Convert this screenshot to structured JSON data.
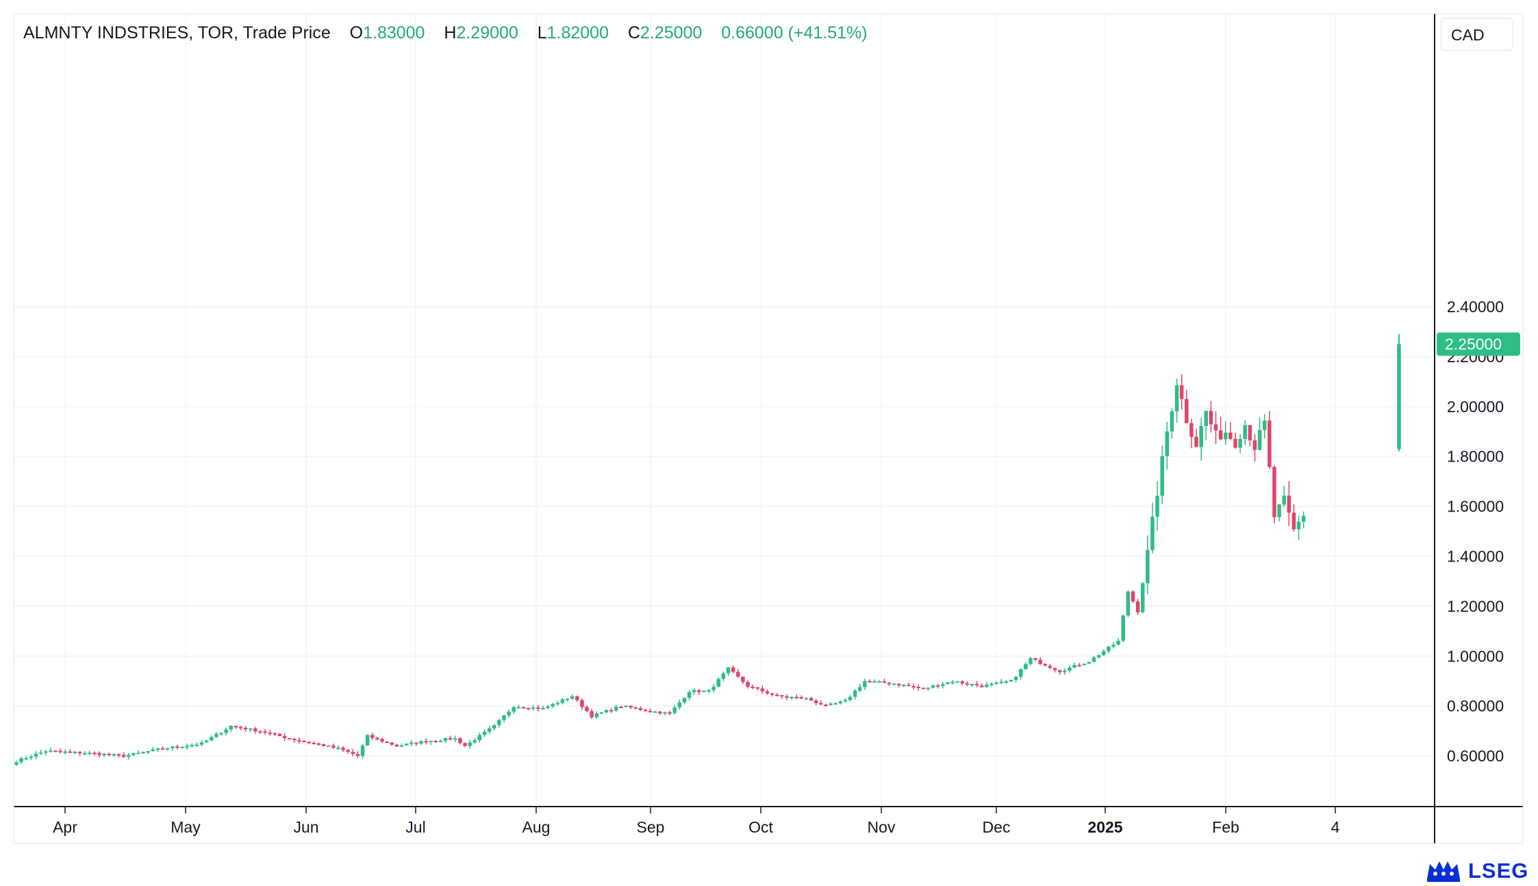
{
  "legend": {
    "instrument": "ALMNTY INDSTRIES, TOR, Trade Price",
    "o_label": "O",
    "o_value": "1.83000",
    "h_label": "H",
    "h_value": "2.29000",
    "l_label": "L",
    "l_value": "1.82000",
    "c_label": "C",
    "c_value": "2.25000",
    "change": "0.66000 (+41.51%)"
  },
  "currency": "CAD",
  "logo": {
    "text": "LSEG",
    "icon": "lseg-lion-crest-icon"
  },
  "colors": {
    "up": "#2ebd85",
    "down": "#e0436b",
    "grid": "#f0f3fa",
    "axis": "#131722",
    "logo": "#0a2fd6"
  },
  "chart_data": {
    "type": "candlestick",
    "ylim": [
      0.4,
      2.6
    ],
    "y_ticks": [
      "0.60000",
      "0.80000",
      "1.00000",
      "1.20000",
      "1.40000",
      "1.60000",
      "1.80000",
      "2.00000",
      "2.20000",
      "2.40000"
    ],
    "x_labels": [
      {
        "label": "Apr",
        "bold": false
      },
      {
        "label": "May",
        "bold": false
      },
      {
        "label": "Jun",
        "bold": false
      },
      {
        "label": "Jul",
        "bold": false
      },
      {
        "label": "Aug",
        "bold": false
      },
      {
        "label": "Sep",
        "bold": false
      },
      {
        "label": "Oct",
        "bold": false
      },
      {
        "label": "Nov",
        "bold": false
      },
      {
        "label": "Dec",
        "bold": false
      },
      {
        "label": "2025",
        "bold": true
      },
      {
        "label": "Feb",
        "bold": false
      },
      {
        "label": "4",
        "bold": false
      }
    ],
    "last_price": "2.25000",
    "last_value": 2.25,
    "waypoints": [
      [
        0,
        0.58
      ],
      [
        6,
        0.62
      ],
      [
        16,
        0.61
      ],
      [
        22,
        0.6
      ],
      [
        30,
        0.63
      ],
      [
        34,
        0.64
      ],
      [
        38,
        0.65
      ],
      [
        44,
        0.72
      ],
      [
        50,
        0.7
      ],
      [
        56,
        0.67
      ],
      [
        66,
        0.63
      ],
      [
        70,
        0.6
      ],
      [
        72,
        0.68
      ],
      [
        78,
        0.64
      ],
      [
        84,
        0.66
      ],
      [
        90,
        0.67
      ],
      [
        92,
        0.64
      ],
      [
        98,
        0.72
      ],
      [
        102,
        0.8
      ],
      [
        108,
        0.79
      ],
      [
        114,
        0.84
      ],
      [
        118,
        0.76
      ],
      [
        124,
        0.8
      ],
      [
        130,
        0.78
      ],
      [
        134,
        0.77
      ],
      [
        138,
        0.86
      ],
      [
        142,
        0.86
      ],
      [
        146,
        0.95
      ],
      [
        150,
        0.88
      ],
      [
        156,
        0.84
      ],
      [
        162,
        0.83
      ],
      [
        166,
        0.8
      ],
      [
        170,
        0.82
      ],
      [
        174,
        0.9
      ],
      [
        180,
        0.89
      ],
      [
        186,
        0.87
      ],
      [
        192,
        0.9
      ],
      [
        198,
        0.88
      ],
      [
        204,
        0.9
      ],
      [
        208,
        0.99
      ],
      [
        214,
        0.94
      ],
      [
        220,
        0.98
      ],
      [
        226,
        1.06
      ],
      [
        228,
        1.26
      ],
      [
        230,
        1.18
      ],
      [
        232,
        1.41
      ],
      [
        234,
        1.66
      ],
      [
        236,
        1.9
      ],
      [
        238,
        2.1
      ],
      [
        240,
        1.95
      ],
      [
        242,
        1.85
      ],
      [
        244,
        1.98
      ],
      [
        246,
        1.88
      ],
      [
        248,
        1.9
      ],
      [
        250,
        1.86
      ],
      [
        252,
        1.93
      ],
      [
        254,
        1.84
      ],
      [
        256,
        1.93
      ],
      [
        258,
        1.56
      ],
      [
        260,
        1.62
      ],
      [
        262,
        1.5
      ],
      [
        264,
        1.57
      ]
    ],
    "last_candle": {
      "open": 1.83,
      "high": 2.29,
      "low": 1.82,
      "close": 2.25
    }
  }
}
